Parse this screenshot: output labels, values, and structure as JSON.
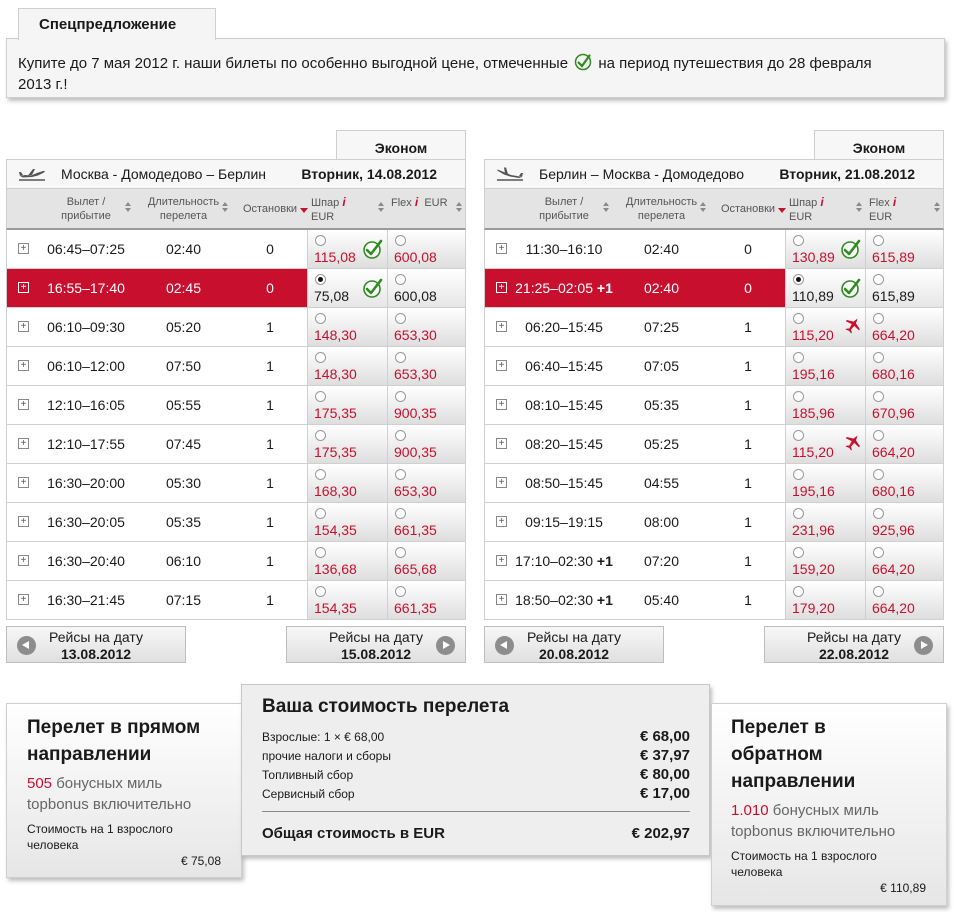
{
  "offer": {
    "title": "Спецпредложение",
    "text_before": "Купите до 7 мая 2012 г. наши билеты по особенно выгодной цене, отмеченные",
    "text_after": "на период путешествия до 28 февраля",
    "text_line2": "2013 г.!"
  },
  "outbound": {
    "class_tab": "Эконом",
    "route": "Москва - Домодедово – Берлин",
    "date": "Вторник, 14.08.2012",
    "headers": {
      "dep_arr": [
        "Вылет /",
        "прибытие"
      ],
      "duration": [
        "Длительность",
        "перелета"
      ],
      "stops": "Остановки",
      "saver": [
        "Шпар",
        "EUR"
      ],
      "flex": "Flex",
      "flex_cur": "EUR",
      "info": "i"
    },
    "rows": [
      {
        "time": "06:45–07:25",
        "plus": "",
        "duration": "02:40",
        "stops": "0",
        "saver": "115,08",
        "flex": "600,08",
        "icon": "check"
      },
      {
        "time": "16:55–17:40",
        "plus": "",
        "duration": "02:45",
        "stops": "0",
        "saver": "75,08",
        "flex": "600,08",
        "icon": "check",
        "selected": true
      },
      {
        "time": "06:10–09:30",
        "plus": "",
        "duration": "05:20",
        "stops": "1",
        "saver": "148,30",
        "flex": "653,30",
        "icon": ""
      },
      {
        "time": "06:10–12:00",
        "plus": "",
        "duration": "07:50",
        "stops": "1",
        "saver": "148,30",
        "flex": "653,30",
        "icon": ""
      },
      {
        "time": "12:10–16:05",
        "plus": "",
        "duration": "05:55",
        "stops": "1",
        "saver": "175,35",
        "flex": "900,35",
        "icon": ""
      },
      {
        "time": "12:10–17:55",
        "plus": "",
        "duration": "07:45",
        "stops": "1",
        "saver": "175,35",
        "flex": "900,35",
        "icon": ""
      },
      {
        "time": "16:30–20:00",
        "plus": "",
        "duration": "05:30",
        "stops": "1",
        "saver": "168,30",
        "flex": "653,30",
        "icon": ""
      },
      {
        "time": "16:30–20:05",
        "plus": "",
        "duration": "05:35",
        "stops": "1",
        "saver": "154,35",
        "flex": "661,35",
        "icon": ""
      },
      {
        "time": "16:30–20:40",
        "plus": "",
        "duration": "06:10",
        "stops": "1",
        "saver": "136,68",
        "flex": "665,68",
        "icon": ""
      },
      {
        "time": "16:30–21:45",
        "plus": "",
        "duration": "07:15",
        "stops": "1",
        "saver": "154,35",
        "flex": "661,35",
        "icon": ""
      }
    ],
    "prev": {
      "label": "Рейсы на дату",
      "date": "13.08.2012"
    },
    "next": {
      "label": "Рейсы на дату",
      "date": "15.08.2012"
    }
  },
  "inbound": {
    "class_tab": "Эконом",
    "route": "Берлин – Москва - Домодедово",
    "date": "Вторник, 21.08.2012",
    "headers": {
      "dep_arr": [
        "Вылет /",
        "прибытие"
      ],
      "duration": [
        "Длительность",
        "перелета"
      ],
      "stops": "Остановки",
      "saver": [
        "Шпар",
        "EUR"
      ],
      "flex": "Flex",
      "flex_cur": "EUR",
      "info": "i"
    },
    "rows": [
      {
        "time": "11:30–16:10",
        "plus": "",
        "duration": "02:40",
        "stops": "0",
        "saver": "130,89",
        "flex": "615,89",
        "icon": "check"
      },
      {
        "time": "21:25–02:05",
        "plus": "+1",
        "duration": "02:40",
        "stops": "0",
        "saver": "110,89",
        "flex": "615,89",
        "icon": "check",
        "selected": true
      },
      {
        "time": "06:20–15:45",
        "plus": "",
        "duration": "07:25",
        "stops": "1",
        "saver": "115,20",
        "flex": "664,20",
        "icon": "plane"
      },
      {
        "time": "06:40–15:45",
        "plus": "",
        "duration": "07:05",
        "stops": "1",
        "saver": "195,16",
        "flex": "680,16",
        "icon": ""
      },
      {
        "time": "08:10–15:45",
        "plus": "",
        "duration": "05:35",
        "stops": "1",
        "saver": "185,96",
        "flex": "670,96",
        "icon": ""
      },
      {
        "time": "08:20–15:45",
        "plus": "",
        "duration": "05:25",
        "stops": "1",
        "saver": "115,20",
        "flex": "664,20",
        "icon": "plane"
      },
      {
        "time": "08:50–15:45",
        "plus": "",
        "duration": "04:55",
        "stops": "1",
        "saver": "195,16",
        "flex": "680,16",
        "icon": ""
      },
      {
        "time": "09:15–19:15",
        "plus": "",
        "duration": "08:00",
        "stops": "1",
        "saver": "231,96",
        "flex": "925,96",
        "icon": ""
      },
      {
        "time": "17:10–02:30",
        "plus": "+1",
        "duration": "07:20",
        "stops": "1",
        "saver": "159,20",
        "flex": "664,20",
        "icon": ""
      },
      {
        "time": "18:50–02:30",
        "plus": "+1",
        "duration": "05:40",
        "stops": "1",
        "saver": "179,20",
        "flex": "664,20",
        "icon": ""
      }
    ],
    "prev": {
      "label": "Рейсы на дату",
      "date": "20.08.2012"
    },
    "next": {
      "label": "Рейсы на дату",
      "date": "22.08.2012"
    }
  },
  "out_summary": {
    "title_line1": "Перелет в прямом",
    "title_line2": "направлении",
    "miles_num": "505",
    "miles_text": "бонусных миль",
    "miles_line2": "topbonus включительно",
    "per_line1": "Стоимость на 1 взрослого",
    "per_line2": "человека",
    "amount": "€ 75,08"
  },
  "cost": {
    "title": "Ваша стоимость перелета",
    "lines": [
      {
        "label": "Взрослые: 1 × € 68,00",
        "value": "€ 68,00"
      },
      {
        "label": "прочие налоги и сборы",
        "value": "€ 37,97"
      },
      {
        "label": "Топливный сбор",
        "value": "€ 80,00"
      },
      {
        "label": "Сервисный сбор",
        "value": "€ 17,00"
      }
    ],
    "total_label": "Общая стоимость в EUR",
    "total_value": "€ 202,97"
  },
  "in_summary": {
    "title_line1": "Перелет в",
    "title_line2": "обратном",
    "title_line3": "направлении",
    "miles_num": "1.010",
    "miles_text": "бонусных миль",
    "miles_line2": "topbonus включительно",
    "per_line1": "Стоимость на 1 взрослого",
    "per_line2": "человека",
    "amount": "€ 110,89"
  },
  "colors": {
    "accent": "#c8102e",
    "check_green": "#2e8b1e",
    "panel_bg": "#f5f5f5"
  }
}
